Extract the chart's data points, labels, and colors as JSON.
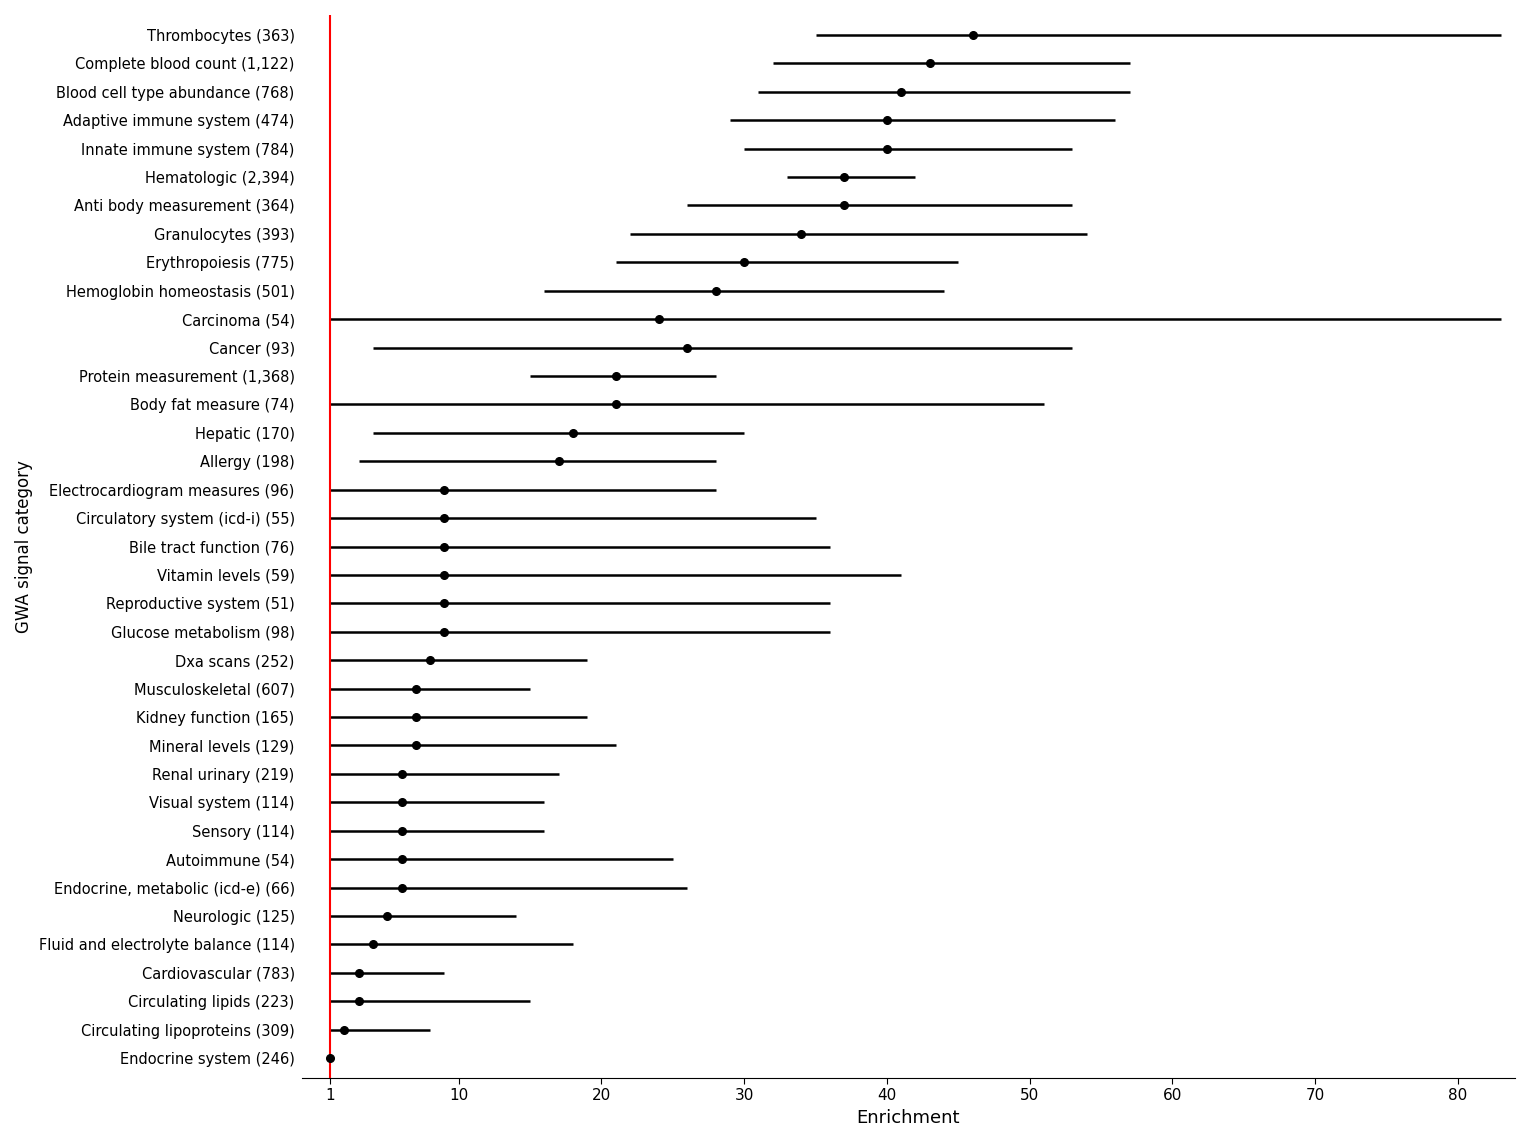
{
  "categories": [
    "Thrombocytes (363)",
    "Complete blood count (1,122)",
    "Blood cell type abundance (768)",
    "Adaptive immune system (474)",
    "Innate immune system (784)",
    "Hematologic (2,394)",
    "Anti body measurement (364)",
    "Granulocytes (393)",
    "Erythropoiesis (775)",
    "Hemoglobin homeostasis (501)",
    "Carcinoma (54)",
    "Cancer (93)",
    "Protein measurement (1,368)",
    "Body fat measure (74)",
    "Hepatic (170)",
    "Allergy (198)",
    "Electrocardiogram measures (96)",
    "Circulatory system (icd-i) (55)",
    "Bile tract function (76)",
    "Vitamin levels (59)",
    "Reproductive system (51)",
    "Glucose metabolism (98)",
    "Dxa scans (252)",
    "Musculoskeletal (607)",
    "Kidney function (165)",
    "Mineral levels (129)",
    "Renal urinary (219)",
    "Visual system (114)",
    "Sensory (114)",
    "Autoimmune (54)",
    "Endocrine, metabolic (icd-e) (66)",
    "Neurologic (125)",
    "Fluid and electrolyte balance (114)",
    "Cardiovascular (783)",
    "Circulating lipids (223)",
    "Circulating lipoproteins (309)",
    "Endocrine system (246)"
  ],
  "centers": [
    46,
    43,
    41,
    40,
    40,
    37,
    37,
    34,
    30,
    28,
    24,
    26,
    21,
    21,
    18,
    17,
    9,
    9,
    9,
    9,
    9,
    9,
    8,
    7,
    7,
    7,
    6,
    6,
    6,
    6,
    6,
    5,
    4,
    3,
    3,
    2,
    1
  ],
  "ci_low": [
    35,
    32,
    31,
    29,
    30,
    33,
    26,
    22,
    21,
    16,
    1,
    4,
    15,
    1,
    4,
    3,
    1,
    1,
    1,
    1,
    1,
    1,
    1,
    1,
    1,
    1,
    1,
    1,
    1,
    1,
    1,
    1,
    1,
    1,
    1,
    1,
    1
  ],
  "ci_high": [
    83,
    57,
    57,
    56,
    53,
    42,
    53,
    54,
    45,
    44,
    83,
    53,
    28,
    51,
    30,
    28,
    28,
    35,
    36,
    41,
    36,
    36,
    19,
    15,
    19,
    21,
    17,
    16,
    16,
    25,
    26,
    14,
    18,
    9,
    15,
    8,
    1
  ],
  "xlabel": "Enrichment",
  "ylabel": "GWA signal category",
  "xlim": [
    -1,
    84
  ],
  "xticks": [
    1,
    10,
    20,
    30,
    40,
    50,
    60,
    70,
    80
  ],
  "xticklabels": [
    "1",
    "10",
    "20",
    "30",
    "40",
    "50",
    "60",
    "70",
    "80"
  ],
  "vline_x": 1,
  "point_color": "black",
  "line_color": "black",
  "vline_color": "red",
  "figsize": [
    15.3,
    11.42
  ],
  "dpi": 100
}
